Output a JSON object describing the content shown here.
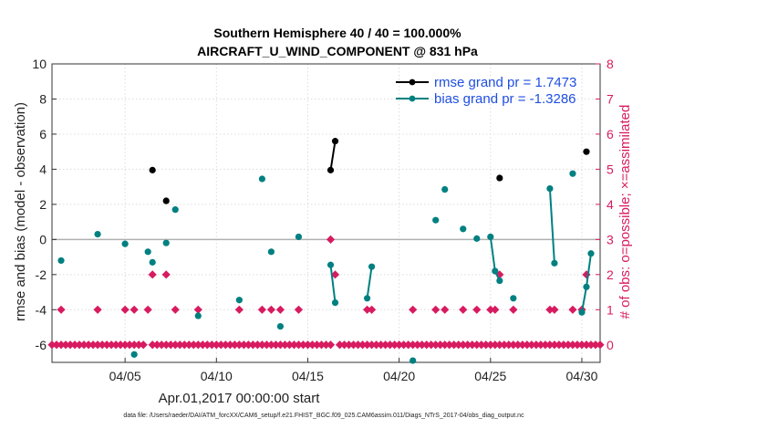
{
  "chart_data": {
    "type": "line",
    "title": "Southern Hemisphere 40 / 40 = 100.000%",
    "subtitle": "AIRCRAFT_U_WIND_COMPONENT @ 831 hPa",
    "xlabel": "Apr.01,2017 00:00:00 start",
    "ylabel": "rmse and bias (model - observation)",
    "ylabel_right": "# of obs: o=possible; ×=assimilated",
    "footnote": "data file: /Users/raeder/DAI/ATM_forcXX/CAM6_setup/f.e21.FHIST_BGC.f09_025.CAM6assim.011/Diags_NTrS_2017-04/obs_diag_output.nc",
    "x_tick_labels": [
      "04/05",
      "04/10",
      "04/15",
      "04/20",
      "04/25",
      "04/30"
    ],
    "x_tick_days": [
      5,
      10,
      15,
      20,
      25,
      30
    ],
    "xlim": [
      1,
      31
    ],
    "ylim": [
      -7,
      10
    ],
    "y_ticks": [
      -6,
      -4,
      -2,
      0,
      2,
      4,
      6,
      8,
      10
    ],
    "ylim_right": [
      -0.5,
      8
    ],
    "y_ticks_right": [
      0,
      1,
      2,
      3,
      4,
      5,
      6,
      7,
      8
    ],
    "grid": true,
    "legend_position": "top-right",
    "colors": {
      "rmse": "#000000",
      "bias": "#008080",
      "obs": "#d81b60",
      "zero_line": "#b0b0b0",
      "legend_text": "#1f4fe0"
    },
    "series": [
      {
        "name": "rmse grand pr = 1.7473",
        "axis": "left",
        "points": [
          [
            6.5,
            3.95
          ],
          [
            7.25,
            2.2
          ],
          [
            16.25,
            3.95
          ],
          [
            16.5,
            5.6
          ],
          [
            25.5,
            3.5
          ],
          [
            30.25,
            5.0
          ]
        ],
        "segments": [
          [
            [
              16.25,
              3.95
            ],
            [
              16.5,
              5.6
            ]
          ]
        ]
      },
      {
        "name": "bias grand pr = -1.3286",
        "axis": "left",
        "points": [
          [
            1.5,
            -1.2
          ],
          [
            3.5,
            0.3
          ],
          [
            5.0,
            -0.25
          ],
          [
            5.5,
            -6.55
          ],
          [
            6.25,
            -0.7
          ],
          [
            6.5,
            -1.3
          ],
          [
            7.25,
            -0.2
          ],
          [
            7.75,
            1.7
          ],
          [
            9.0,
            -4.35
          ],
          [
            11.25,
            -3.45
          ],
          [
            12.5,
            3.45
          ],
          [
            13.0,
            -0.7
          ],
          [
            13.5,
            -4.95
          ],
          [
            14.5,
            0.15
          ],
          [
            16.25,
            -1.45
          ],
          [
            16.5,
            -3.6
          ],
          [
            18.25,
            -3.35
          ],
          [
            18.5,
            -1.55
          ],
          [
            20.75,
            -6.9
          ],
          [
            22.0,
            1.1
          ],
          [
            22.5,
            2.85
          ],
          [
            23.5,
            0.6
          ],
          [
            24.25,
            0.05
          ],
          [
            25.0,
            0.15
          ],
          [
            25.25,
            -1.8
          ],
          [
            25.5,
            -2.35
          ],
          [
            26.25,
            -3.35
          ],
          [
            28.25,
            2.9
          ],
          [
            28.5,
            -1.35
          ],
          [
            29.5,
            3.75
          ],
          [
            30.0,
            -4.15
          ],
          [
            30.25,
            -2.7
          ],
          [
            30.5,
            -0.8
          ]
        ],
        "segments": [
          [
            [
              16.25,
              -1.45
            ],
            [
              16.5,
              -3.6
            ]
          ],
          [
            [
              18.25,
              -3.35
            ],
            [
              18.5,
              -1.55
            ]
          ],
          [
            [
              25.0,
              0.15
            ],
            [
              25.25,
              -1.8
            ],
            [
              25.5,
              -2.35
            ]
          ],
          [
            [
              28.25,
              2.9
            ],
            [
              28.5,
              -1.35
            ]
          ],
          [
            [
              30.0,
              -4.15
            ],
            [
              30.25,
              -2.7
            ],
            [
              30.5,
              -0.8
            ]
          ]
        ]
      },
      {
        "name": "obs",
        "axis": "right",
        "count_zero_days": [
          1.0,
          1.25,
          1.5,
          1.75,
          2.0,
          2.25,
          2.5,
          2.75,
          3.0,
          3.25,
          3.5,
          3.75,
          4.0,
          4.25,
          4.5,
          4.75,
          5.0,
          5.25,
          5.5,
          5.75,
          6.0,
          6.5,
          6.75,
          7.0,
          7.25,
          7.5,
          7.75,
          8.0,
          8.25,
          8.5,
          8.75,
          9.0,
          9.25,
          9.5,
          9.75,
          10.0,
          10.25,
          10.5,
          10.75,
          11.0,
          11.25,
          11.5,
          11.75,
          12.0,
          12.25,
          12.5,
          12.75,
          13.0,
          13.25,
          13.5,
          13.75,
          14.0,
          14.25,
          14.5,
          14.75,
          15.0,
          15.25,
          15.5,
          15.75,
          16.0,
          16.25,
          16.75,
          17.0,
          17.25,
          17.5,
          17.75,
          18.0,
          18.25,
          18.5,
          18.75,
          19.0,
          19.25,
          19.5,
          19.75,
          20.0,
          20.25,
          20.5,
          20.75,
          21.0,
          21.25,
          21.5,
          21.75,
          22.0,
          22.25,
          22.5,
          22.75,
          23.0,
          23.25,
          23.5,
          23.75,
          24.0,
          24.25,
          24.5,
          24.75,
          25.0,
          25.25,
          25.5,
          25.75,
          26.0,
          26.25,
          26.5,
          26.75,
          27.0,
          27.25,
          27.5,
          27.75,
          28.0,
          28.25,
          28.5,
          28.75,
          29.0,
          29.25,
          29.5,
          29.75,
          30.0,
          30.25,
          30.75,
          31.0
        ],
        "points": [
          [
            1.5,
            1
          ],
          [
            3.5,
            1
          ],
          [
            5.0,
            1
          ],
          [
            5.5,
            1
          ],
          [
            6.25,
            1
          ],
          [
            6.5,
            2
          ],
          [
            7.25,
            2
          ],
          [
            7.75,
            1
          ],
          [
            9.0,
            1
          ],
          [
            11.25,
            1
          ],
          [
            12.5,
            1
          ],
          [
            13.0,
            1
          ],
          [
            13.5,
            1
          ],
          [
            14.5,
            1
          ],
          [
            16.25,
            3
          ],
          [
            16.5,
            2
          ],
          [
            18.25,
            1
          ],
          [
            18.5,
            1
          ],
          [
            20.75,
            1
          ],
          [
            22.0,
            1
          ],
          [
            22.5,
            1
          ],
          [
            23.5,
            1
          ],
          [
            24.25,
            1
          ],
          [
            25.0,
            1
          ],
          [
            25.25,
            1
          ],
          [
            25.5,
            2
          ],
          [
            26.25,
            1
          ],
          [
            28.25,
            1
          ],
          [
            28.5,
            1
          ],
          [
            29.5,
            1
          ],
          [
            30.0,
            1
          ],
          [
            30.25,
            2
          ],
          [
            30.5,
            0
          ]
        ]
      }
    ]
  }
}
